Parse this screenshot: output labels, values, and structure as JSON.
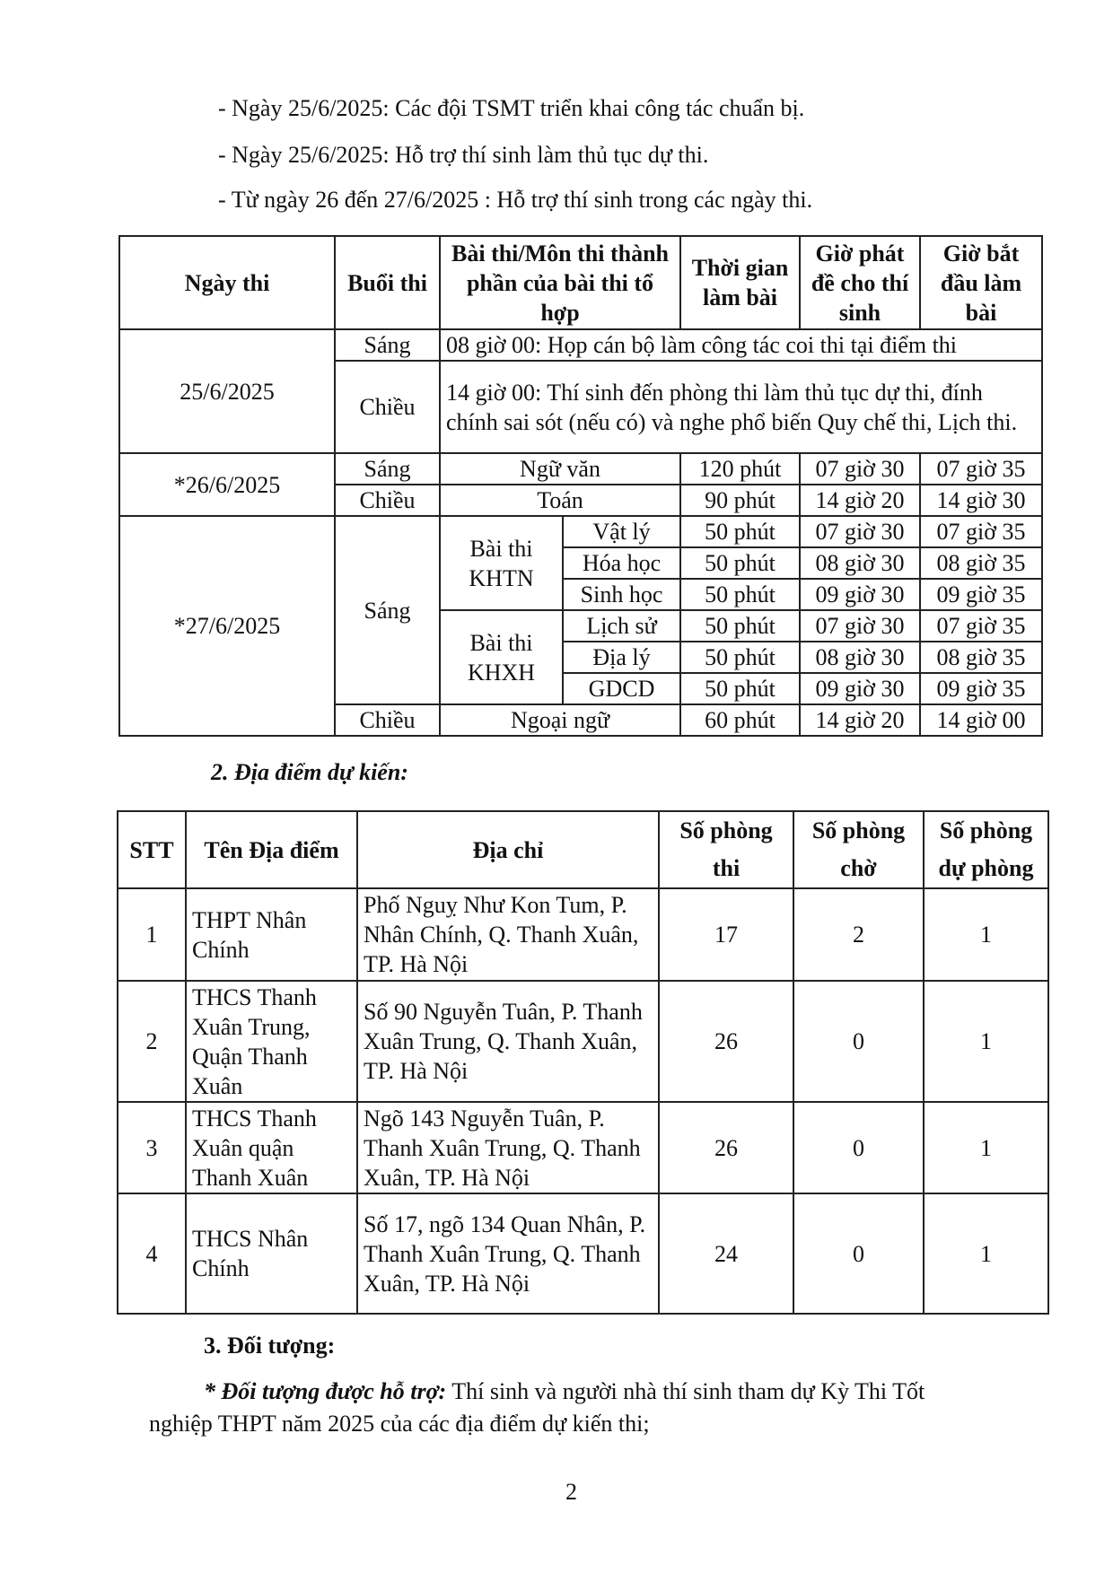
{
  "intro_lines": [
    "- Ngày 25/6/2025: Các đội TSMT triển khai công tác chuẩn bị.",
    "- Ngày 25/6/2025: Hỗ trợ thí sinh làm thủ tục dự thi.",
    "- Từ ngày 26 đến 27/6/2025 : Hỗ trợ thí sinh trong các ngày thi."
  ],
  "schedule": {
    "headers": [
      "Ngày thi",
      "Buổi thi",
      "Bài thi/Môn thi thành phần của bài thi tổ hợp",
      "Thời gian làm bài",
      "Giờ phát đề cho thí sinh",
      "Giờ bắt đầu làm bài"
    ],
    "day1": {
      "date": "25/6/2025",
      "sang": "Sáng",
      "sang_note": "08 giờ 00: Họp cán bộ làm công tác coi thi tại điểm thi",
      "chieu": "Chiều",
      "chieu_note": "14 giờ 00: Thí sinh đến phòng thi làm thủ tục dự thi, đính chính sai sót (nếu có) và nghe phổ biến Quy chế thi, Lịch thi."
    },
    "day2": {
      "date": "*26/6/2025",
      "rows": [
        {
          "session": "Sáng",
          "subject": "Ngữ văn",
          "duration": "120 phút",
          "distribute": "07 giờ 30",
          "start": "07 giờ 35"
        },
        {
          "session": "Chiều",
          "subject": "Toán",
          "duration": "90 phút",
          "distribute": "14 giờ 20",
          "start": "14 giờ 30"
        }
      ]
    },
    "day3": {
      "date": "*27/6/2025",
      "sang": "Sáng",
      "khtn": "Bài thi KHTN",
      "khxh": "Bài thi KHXH",
      "rows": [
        {
          "subject": "Vật lý",
          "duration": "50 phút",
          "distribute": "07 giờ 30",
          "start": "07 giờ 35"
        },
        {
          "subject": "Hóa học",
          "duration": "50 phút",
          "distribute": "08 giờ 30",
          "start": "08 giờ 35"
        },
        {
          "subject": "Sinh học",
          "duration": "50 phút",
          "distribute": "09 giờ 30",
          "start": "09 giờ 35"
        },
        {
          "subject": "Lịch sử",
          "duration": "50 phút",
          "distribute": "07 giờ 30",
          "start": "07 giờ 35"
        },
        {
          "subject": "Địa lý",
          "duration": "50 phút",
          "distribute": "08 giờ 30",
          "start": "08 giờ 35"
        },
        {
          "subject": "GDCD",
          "duration": "50 phút",
          "distribute": "09 giờ 30",
          "start": "09 giờ 35"
        }
      ],
      "chieu": {
        "session": "Chiều",
        "subject": "Ngoại ngữ",
        "duration": "60 phút",
        "distribute": "14 giờ 20",
        "start": "14 giờ 00"
      }
    }
  },
  "section2_title": "2. Địa điểm dự kiến:",
  "locations": {
    "headers": [
      "STT",
      "Tên Địa điểm",
      "Địa chỉ",
      "Số phòng thi",
      "Số phòng chờ",
      "Số phòng dự phòng"
    ],
    "rows": [
      {
        "stt": "1",
        "name": "THPT Nhân Chính",
        "address": "Phố Nguỵ Như Kon Tum, P. Nhân Chính, Q. Thanh Xuân, TP. Hà Nội",
        "rooms": "17",
        "waiting": "2",
        "reserve": "1"
      },
      {
        "stt": "2",
        "name": "THCS Thanh Xuân Trung, Quận Thanh Xuân",
        "address": "Số 90 Nguyễn Tuân, P. Thanh Xuân Trung, Q. Thanh Xuân, TP. Hà Nội",
        "rooms": "26",
        "waiting": "0",
        "reserve": "1"
      },
      {
        "stt": "3",
        "name": "THCS Thanh Xuân quận Thanh Xuân",
        "address": "Ngõ 143 Nguyễn Tuân, P. Thanh Xuân Trung, Q. Thanh Xuân, TP. Hà Nội",
        "rooms": "26",
        "waiting": "0",
        "reserve": "1"
      },
      {
        "stt": "4",
        "name": "THCS Nhân Chính",
        "address": "Số 17, ngõ 134 Quan Nhân, P. Thanh Xuân Trung, Q. Thanh Xuân, TP. Hà Nội",
        "rooms": "24",
        "waiting": "0",
        "reserve": "1"
      }
    ]
  },
  "section3_title": "3. Đối tượng:",
  "section3_label": "* Đối tượng được hỗ trợ:",
  "section3_text_1": " Thí sinh và người nhà thí sinh tham dự Kỳ Thi Tốt",
  "section3_text_2": "nghiệp THPT năm 2025 của các địa điểm dự kiến thi;",
  "page_number": "2"
}
